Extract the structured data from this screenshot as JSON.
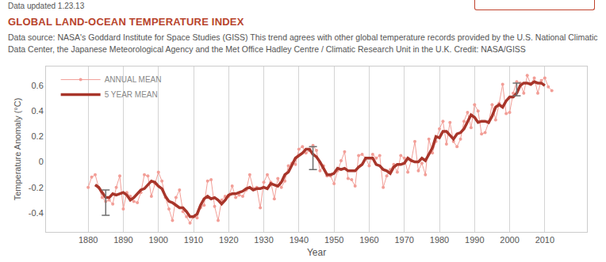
{
  "chart_data": {
    "type": "line",
    "note": "Data updated 1.23.13",
    "title": "GLOBAL LAND-OCEAN TEMPERATURE INDEX",
    "subtitle": "Data source: NASA's Goddard Institute for Space Studies (GISS) This trend agrees with other global temperature records provided by the U.S. National Climatic Data Center, the Japanese Meteorological Agency and the Met Office Hadley Centre / Climatic Research Unit in the U.K. Credit: NASA/GISS",
    "x_label": "Year",
    "y_label": "Temperature Anomaly (°C)",
    "x": [
      1880,
      1881,
      1882,
      1883,
      1884,
      1885,
      1886,
      1887,
      1888,
      1889,
      1890,
      1891,
      1892,
      1893,
      1894,
      1895,
      1896,
      1897,
      1898,
      1899,
      1900,
      1901,
      1902,
      1903,
      1904,
      1905,
      1906,
      1907,
      1908,
      1909,
      1910,
      1911,
      1912,
      1913,
      1914,
      1915,
      1916,
      1917,
      1918,
      1919,
      1920,
      1921,
      1922,
      1923,
      1924,
      1925,
      1926,
      1927,
      1928,
      1929,
      1930,
      1931,
      1932,
      1933,
      1934,
      1935,
      1936,
      1937,
      1938,
      1939,
      1940,
      1941,
      1942,
      1943,
      1944,
      1945,
      1946,
      1947,
      1948,
      1949,
      1950,
      1951,
      1952,
      1953,
      1954,
      1955,
      1956,
      1957,
      1958,
      1959,
      1960,
      1961,
      1962,
      1963,
      1964,
      1965,
      1966,
      1967,
      1968,
      1969,
      1970,
      1971,
      1972,
      1973,
      1974,
      1975,
      1976,
      1977,
      1978,
      1979,
      1980,
      1981,
      1982,
      1983,
      1984,
      1985,
      1986,
      1987,
      1988,
      1989,
      1990,
      1991,
      1992,
      1993,
      1994,
      1995,
      1996,
      1997,
      1998,
      1999,
      2000,
      2001,
      2002,
      2003,
      2004,
      2005,
      2006,
      2007,
      2008,
      2009,
      2010,
      2011,
      2012
    ],
    "series": [
      {
        "name": "ANNUAL MEAN",
        "color": "#f29e97",
        "marker": "circle",
        "line_style": "solid",
        "values": [
          -0.2,
          -0.12,
          -0.1,
          -0.2,
          -0.28,
          -0.31,
          -0.3,
          -0.33,
          -0.2,
          -0.11,
          -0.37,
          -0.24,
          -0.27,
          -0.31,
          -0.32,
          -0.24,
          -0.1,
          -0.11,
          -0.27,
          -0.17,
          -0.08,
          -0.15,
          -0.28,
          -0.37,
          -0.46,
          -0.28,
          -0.22,
          -0.39,
          -0.43,
          -0.48,
          -0.43,
          -0.44,
          -0.36,
          -0.34,
          -0.15,
          -0.14,
          -0.35,
          -0.46,
          -0.3,
          -0.27,
          -0.27,
          -0.19,
          -0.28,
          -0.26,
          -0.27,
          -0.22,
          -0.1,
          -0.21,
          -0.2,
          -0.36,
          -0.16,
          -0.1,
          -0.16,
          -0.29,
          -0.13,
          -0.2,
          -0.15,
          -0.03,
          -0.01,
          -0.02,
          0.1,
          0.12,
          0.07,
          0.09,
          0.13,
          0.09,
          -0.07,
          -0.03,
          -0.11,
          -0.11,
          -0.17,
          -0.07,
          0.01,
          0.08,
          -0.13,
          -0.14,
          -0.19,
          0.05,
          0.06,
          0.03,
          -0.03,
          0.06,
          0.03,
          0.05,
          -0.2,
          -0.11,
          -0.06,
          -0.02,
          -0.08,
          0.05,
          0.03,
          -0.08,
          0.01,
          0.16,
          -0.07,
          -0.01,
          -0.1,
          0.18,
          0.07,
          0.16,
          0.26,
          0.32,
          0.14,
          0.31,
          0.16,
          0.12,
          0.18,
          0.32,
          0.39,
          0.27,
          0.45,
          0.4,
          0.22,
          0.23,
          0.31,
          0.45,
          0.33,
          0.46,
          0.61,
          0.38,
          0.39,
          0.54,
          0.63,
          0.62,
          0.54,
          0.68,
          0.61,
          0.66,
          0.54,
          0.64,
          0.66,
          0.59,
          0.56
        ]
      },
      {
        "name": "5 YEAR MEAN",
        "color": "#a8352a",
        "line_style": "solid",
        "values": [
          null,
          null,
          -0.18,
          -0.2,
          -0.24,
          -0.28,
          -0.28,
          -0.25,
          -0.26,
          -0.25,
          -0.24,
          -0.26,
          -0.3,
          -0.28,
          -0.25,
          -0.22,
          -0.21,
          -0.18,
          -0.15,
          -0.16,
          -0.19,
          -0.21,
          -0.27,
          -0.31,
          -0.32,
          -0.34,
          -0.36,
          -0.36,
          -0.39,
          -0.43,
          -0.43,
          -0.41,
          -0.34,
          -0.29,
          -0.27,
          -0.29,
          -0.28,
          -0.3,
          -0.33,
          -0.3,
          -0.26,
          -0.25,
          -0.25,
          -0.24,
          -0.23,
          -0.21,
          -0.2,
          -0.22,
          -0.21,
          -0.21,
          -0.2,
          -0.21,
          -0.17,
          -0.18,
          -0.19,
          -0.16,
          -0.1,
          -0.08,
          -0.02,
          0.03,
          0.05,
          0.07,
          0.1,
          0.1,
          0.06,
          0.04,
          0,
          -0.05,
          -0.1,
          -0.1,
          -0.09,
          -0.05,
          -0.06,
          -0.05,
          -0.07,
          -0.07,
          -0.07,
          -0.04,
          -0.02,
          0.03,
          0.03,
          0.03,
          -0.02,
          -0.03,
          -0.06,
          -0.07,
          -0.09,
          -0.04,
          -0.02,
          -0.02,
          -0.01,
          0.03,
          0.01,
          0,
          0,
          0.03,
          0.01,
          0.06,
          0.11,
          0.2,
          0.19,
          0.24,
          0.24,
          0.21,
          0.18,
          0.22,
          0.23,
          0.26,
          0.32,
          0.37,
          0.35,
          0.31,
          0.32,
          0.32,
          0.31,
          0.36,
          0.43,
          0.45,
          0.43,
          0.48,
          0.51,
          0.51,
          0.54,
          0.6,
          0.62,
          0.62,
          0.61,
          0.63,
          0.62,
          0.62,
          0.6,
          null,
          null
        ]
      }
    ],
    "error_bars": {
      "x": [
        1885,
        1944,
        2002
      ],
      "values": [
        -0.32,
        0.03,
        0.57
      ],
      "error": [
        0.1,
        0.09,
        0.05
      ]
    },
    "xlim": [
      1868,
      2022
    ],
    "xticks": [
      1880,
      1890,
      1900,
      1910,
      1920,
      1930,
      1940,
      1950,
      1960,
      1970,
      1980,
      1990,
      2000,
      2010
    ],
    "ylim": [
      -0.55,
      0.75
    ],
    "yticks": [
      -0.4,
      -0.2,
      0,
      0.2,
      0.4,
      0.6
    ],
    "grid": "x",
    "legend": "top left"
  }
}
